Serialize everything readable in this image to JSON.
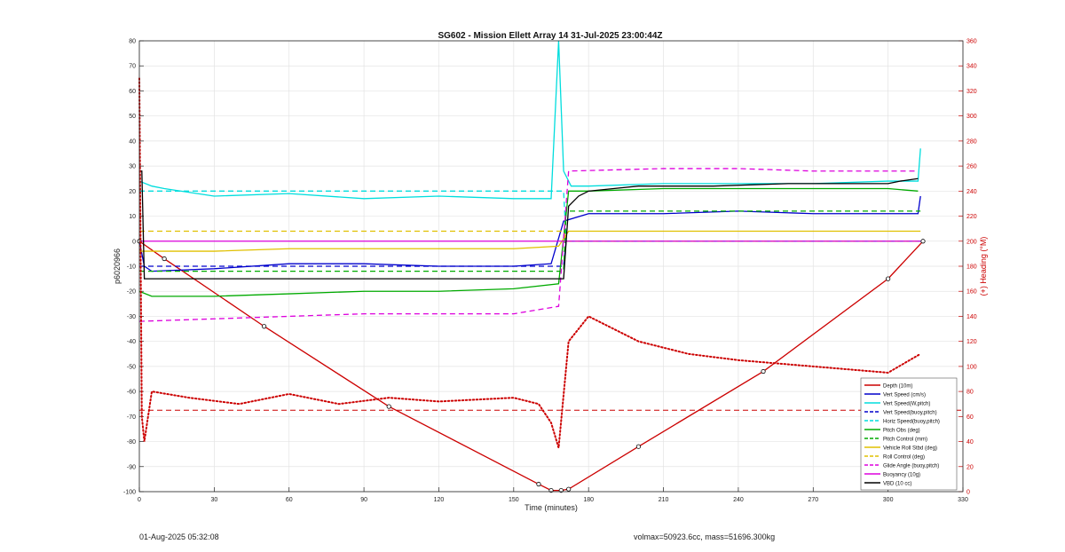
{
  "footer": {
    "date": "01-Aug-2025 05:32:08",
    "mass_info": "volmax=50923.6cc, mass=51696.300kg"
  },
  "chart_data": {
    "type": "line",
    "title": "SG602 - Mission Ellett Array 14 31-Jul-2025 23:00:44Z",
    "xlabel": "Time (minutes)",
    "ylabel": "p6020966",
    "y2label": "(+) Heading (°M)",
    "xlim": [
      0,
      330
    ],
    "ylim": [
      -100,
      80
    ],
    "y2lim": [
      0,
      360
    ],
    "xticks": [
      0,
      30,
      60,
      90,
      120,
      150,
      180,
      210,
      240,
      270,
      300,
      330
    ],
    "yticks": [
      -100,
      -90,
      -80,
      -70,
      -60,
      -50,
      -40,
      -30,
      -20,
      -10,
      0,
      10,
      20,
      30,
      40,
      50,
      60,
      70,
      80
    ],
    "y2ticks": [
      0,
      20,
      40,
      60,
      80,
      100,
      120,
      140,
      160,
      180,
      200,
      220,
      240,
      260,
      280,
      300,
      320,
      340,
      360
    ],
    "grid": true,
    "legend_position": "bottom-right",
    "colors": {
      "depth": "#cc0000",
      "vert_speed": "#0000cc",
      "horz_speed": "#00dddd",
      "pitch": "#00aa00",
      "roll": "#e0c000",
      "glide": "#dd00dd",
      "vbd": "#000000",
      "heading": "#cc0000",
      "right_axis": "#cc0000"
    },
    "series": [
      {
        "name": "Depth (10m)",
        "style": "solid",
        "color": "#cc0000",
        "x": [
          0,
          10,
          50,
          100,
          160,
          165,
          169,
          172,
          200,
          250,
          300,
          314
        ],
        "y": [
          0,
          -7,
          -34,
          -66,
          -97,
          -99.5,
          -99.5,
          -99,
          -82,
          -52,
          -15,
          0
        ]
      },
      {
        "name": "Vert Speed (cm/s)",
        "style": "solid",
        "color": "#0000cc",
        "x": [
          0,
          2,
          5,
          30,
          60,
          90,
          120,
          150,
          165,
          170,
          180,
          210,
          240,
          270,
          300,
          312,
          313
        ],
        "y": [
          0,
          -10,
          -12,
          -11,
          -9,
          -9,
          -10,
          -10,
          -9,
          8,
          11,
          11,
          12,
          11,
          11,
          11,
          18
        ]
      },
      {
        "name": "Vert Speed(W,pitch)",
        "style": "solid",
        "color": "#00dddd",
        "x": [
          0,
          5,
          10,
          30,
          60,
          90,
          120,
          150,
          165,
          168,
          170,
          173,
          180,
          210,
          240,
          270,
          300,
          312,
          313
        ],
        "y": [
          24,
          22,
          21,
          18,
          19,
          17,
          18,
          17,
          17,
          80,
          28,
          22,
          22,
          23,
          23,
          23,
          24,
          24,
          37
        ]
      },
      {
        "name": "Vert Speed(buoy,pitch)",
        "style": "dashed",
        "color": "#0000cc",
        "x": [
          0,
          170,
          171,
          313
        ],
        "y": [
          -10,
          -10,
          0,
          0
        ]
      },
      {
        "name": "Horiz Speed(buoy,pitch)",
        "style": "dashed",
        "color": "#00dddd",
        "x": [
          0,
          170,
          171,
          313
        ],
        "y": [
          20,
          20,
          0,
          0
        ]
      },
      {
        "name": "Pitch Obs (deg)",
        "style": "solid",
        "color": "#00aa00",
        "x": [
          0,
          5,
          30,
          60,
          90,
          120,
          150,
          168,
          172,
          180,
          210,
          240,
          270,
          300,
          312
        ],
        "y": [
          -20,
          -22,
          -22,
          -21,
          -20,
          -20,
          -19,
          -17,
          20,
          20,
          21,
          21,
          21,
          21,
          20
        ]
      },
      {
        "name": "Pitch Control (mm)",
        "style": "dashed",
        "color": "#00aa00",
        "x": [
          0,
          170,
          171,
          313
        ],
        "y": [
          -12,
          -12,
          12,
          12
        ]
      },
      {
        "name": "Vehicle Roll Stbd (deg)",
        "style": "solid",
        "color": "#e0c000",
        "x": [
          0,
          30,
          60,
          90,
          120,
          150,
          168,
          172,
          210,
          240,
          270,
          313
        ],
        "y": [
          -4,
          -4,
          -3,
          -3,
          -3,
          -3,
          -2,
          4,
          4,
          4,
          4,
          4
        ]
      },
      {
        "name": "Roll Control (deg)",
        "style": "dashed",
        "color": "#e0c000",
        "x": [
          0,
          170,
          171,
          313
        ],
        "y": [
          4,
          4,
          0,
          0
        ]
      },
      {
        "name": "Glide Angle (buoy,pitch)",
        "style": "dashed",
        "color": "#dd00dd",
        "x": [
          0,
          30,
          60,
          90,
          120,
          150,
          168,
          172,
          210,
          240,
          270,
          300,
          312
        ],
        "y": [
          -32,
          -31,
          -30,
          -29,
          -29,
          -29,
          -26,
          28,
          29,
          29,
          28,
          28,
          28
        ]
      },
      {
        "name": "Buoyancy (10g)",
        "style": "solid",
        "color": "#dd00dd",
        "x": [
          0,
          313
        ],
        "y": [
          0,
          0
        ]
      },
      {
        "name": "VBD (10 cc)",
        "style": "solid",
        "color": "#000000",
        "x": [
          0,
          1,
          2,
          170,
          172,
          176,
          180,
          190,
          200,
          230,
          260,
          300,
          305,
          312
        ],
        "y": [
          28,
          28,
          -15,
          -15,
          14,
          18,
          20,
          21,
          22,
          22,
          23,
          23,
          24,
          25
        ]
      }
    ],
    "heading": {
      "name": "Heading (°M)",
      "color": "#cc0000",
      "axis": "right",
      "x": [
        0,
        1,
        2,
        5,
        20,
        40,
        60,
        80,
        100,
        120,
        150,
        160,
        165,
        168,
        172,
        180,
        200,
        220,
        240,
        270,
        300,
        313
      ],
      "y": [
        330,
        60,
        40,
        80,
        75,
        70,
        78,
        70,
        75,
        72,
        75,
        70,
        55,
        35,
        120,
        140,
        120,
        110,
        105,
        100,
        95,
        110
      ],
      "reference": 65
    },
    "legend": [
      {
        "label": "Depth (10m)",
        "color": "#cc0000",
        "style": "solid"
      },
      {
        "label": "Vert Speed (cm/s)",
        "color": "#0000cc",
        "style": "solid"
      },
      {
        "label": "Vert Speed(W,pitch)",
        "color": "#00dddd",
        "style": "solid"
      },
      {
        "label": "Vert Speed(buoy,pitch)",
        "color": "#0000cc",
        "style": "dashed"
      },
      {
        "label": "Horiz Speed(buoy,pitch)",
        "color": "#00dddd",
        "style": "dashed"
      },
      {
        "label": "Pitch Obs (deg)",
        "color": "#00aa00",
        "style": "solid"
      },
      {
        "label": "Pitch Control (mm)",
        "color": "#00aa00",
        "style": "dashed"
      },
      {
        "label": "Vehicle Roll Stbd (deg)",
        "color": "#e0c000",
        "style": "solid"
      },
      {
        "label": "Roll Control (deg)",
        "color": "#e0c000",
        "style": "dashed"
      },
      {
        "label": "Glide Angle (buoy,pitch)",
        "color": "#dd00dd",
        "style": "dashed"
      },
      {
        "label": "Buoyancy (10g)",
        "color": "#dd00dd",
        "style": "solid"
      },
      {
        "label": "VBD (10 cc)",
        "color": "#000000",
        "style": "solid"
      }
    ]
  }
}
